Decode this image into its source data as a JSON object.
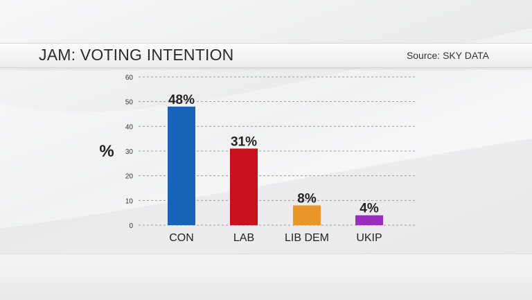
{
  "header": {
    "title": "JAM: VOTING INTENTION",
    "source": "Source: SKY DATA"
  },
  "chart_data": {
    "type": "bar",
    "title": "JAM: VOTING INTENTION",
    "ylabel": "%",
    "xlabel": "",
    "categories": [
      "CON",
      "LAB",
      "LIB DEM",
      "UKIP"
    ],
    "values": [
      48,
      31,
      8,
      4
    ],
    "value_labels": [
      "48%",
      "31%",
      "8%",
      "4%"
    ],
    "colors": [
      "#1763b8",
      "#c8101e",
      "#e8962a",
      "#9a2fbf"
    ],
    "ylim": [
      0,
      60
    ],
    "yticks": [
      0,
      10,
      20,
      30,
      40,
      50,
      60
    ],
    "grid": true
  }
}
